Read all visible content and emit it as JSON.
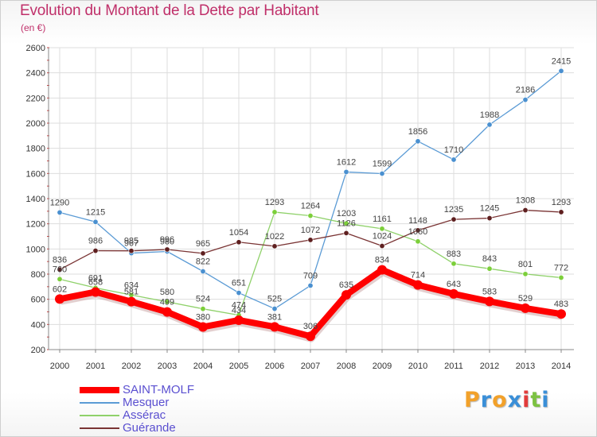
{
  "title": "Evolution du Montant de la Dette par Habitant",
  "unit": "(en €)",
  "logo": {
    "letters": [
      "P",
      "r",
      "o",
      "x",
      "i",
      "t",
      "i"
    ],
    "colors": [
      "#f2a12a",
      "#3a8fd8",
      "#f2a12a",
      "#3a8fd8",
      "#e23b3b",
      "#7cc242",
      "#3a8fd8"
    ]
  },
  "chart_data": {
    "type": "line",
    "title": "Evolution du Montant de la Dette par Habitant",
    "ylabel": "(en €)",
    "ylim": [
      200,
      2600
    ],
    "yticks": [
      "200",
      "400",
      "600",
      "800",
      "1000",
      "1200",
      "1400",
      "1600",
      "1800",
      "2000",
      "2200",
      "2400",
      "2600"
    ],
    "x": [
      "2000",
      "2001",
      "2002",
      "2003",
      "2004",
      "2005",
      "2006",
      "2007",
      "2008",
      "2009",
      "2010",
      "2011",
      "2012",
      "2013",
      "2014"
    ],
    "grid": true,
    "legend_position": "bottom-left",
    "series": [
      {
        "name": "Mesquer",
        "color": "#5b9bd5",
        "marker_color": "#4a90d0",
        "values": [
          1290,
          1215,
          967,
          980,
          822,
          651,
          525,
          709,
          1612,
          1599,
          1856,
          1710,
          1988,
          2186,
          2415
        ],
        "labels": [
          "1290",
          "1215",
          "967",
          "980",
          "822",
          "651",
          "525",
          "709",
          "1612",
          "1599",
          "1856",
          "1710",
          "1988",
          "2186",
          "2415"
        ]
      },
      {
        "name": "Assérac",
        "color": "#8fd16a",
        "marker_color": "#7ccf3a",
        "values": [
          760,
          691,
          634,
          580,
          524,
          474,
          1293,
          1264,
          1203,
          1161,
          1060,
          883,
          843,
          801,
          772
        ],
        "labels": [
          "760",
          "691",
          "634",
          "580",
          "524",
          "474",
          "1293",
          "1264",
          "1203",
          "1161",
          "1060",
          "883",
          "843",
          "801",
          "772"
        ]
      },
      {
        "name": "Guérande",
        "color": "#7a3434",
        "marker_color": "#5e1f1f",
        "values": [
          836,
          986,
          985,
          996,
          965,
          1054,
          1022,
          1072,
          1126,
          1024,
          1148,
          1235,
          1245,
          1308,
          1293
        ],
        "labels": [
          "836",
          "986",
          "985",
          "996",
          "965",
          "1054",
          "1022",
          "1072",
          "1126",
          "1024",
          "1148",
          "1235",
          "1245",
          "1308",
          "1293"
        ]
      },
      {
        "name": "SAINT-MOLF",
        "color": "#ff0000",
        "marker_color": "#ff0000",
        "values": [
          602,
          658,
          581,
          499,
          380,
          434,
          381,
          306,
          635,
          834,
          714,
          643,
          583,
          529,
          483
        ],
        "labels": [
          "602",
          "658",
          "581",
          "499",
          "380",
          "434",
          "381",
          "306",
          "635",
          "834",
          "714",
          "643",
          "583",
          "529",
          "483"
        ]
      }
    ],
    "legend": [
      {
        "name": "SAINT-MOLF",
        "color": "#ff0000",
        "thick": true
      },
      {
        "name": "Mesquer",
        "color": "#5b9bd5",
        "thick": false
      },
      {
        "name": "Assérac",
        "color": "#8fd16a",
        "thick": false
      },
      {
        "name": "Guérande",
        "color": "#7a3434",
        "thick": false
      }
    ]
  }
}
